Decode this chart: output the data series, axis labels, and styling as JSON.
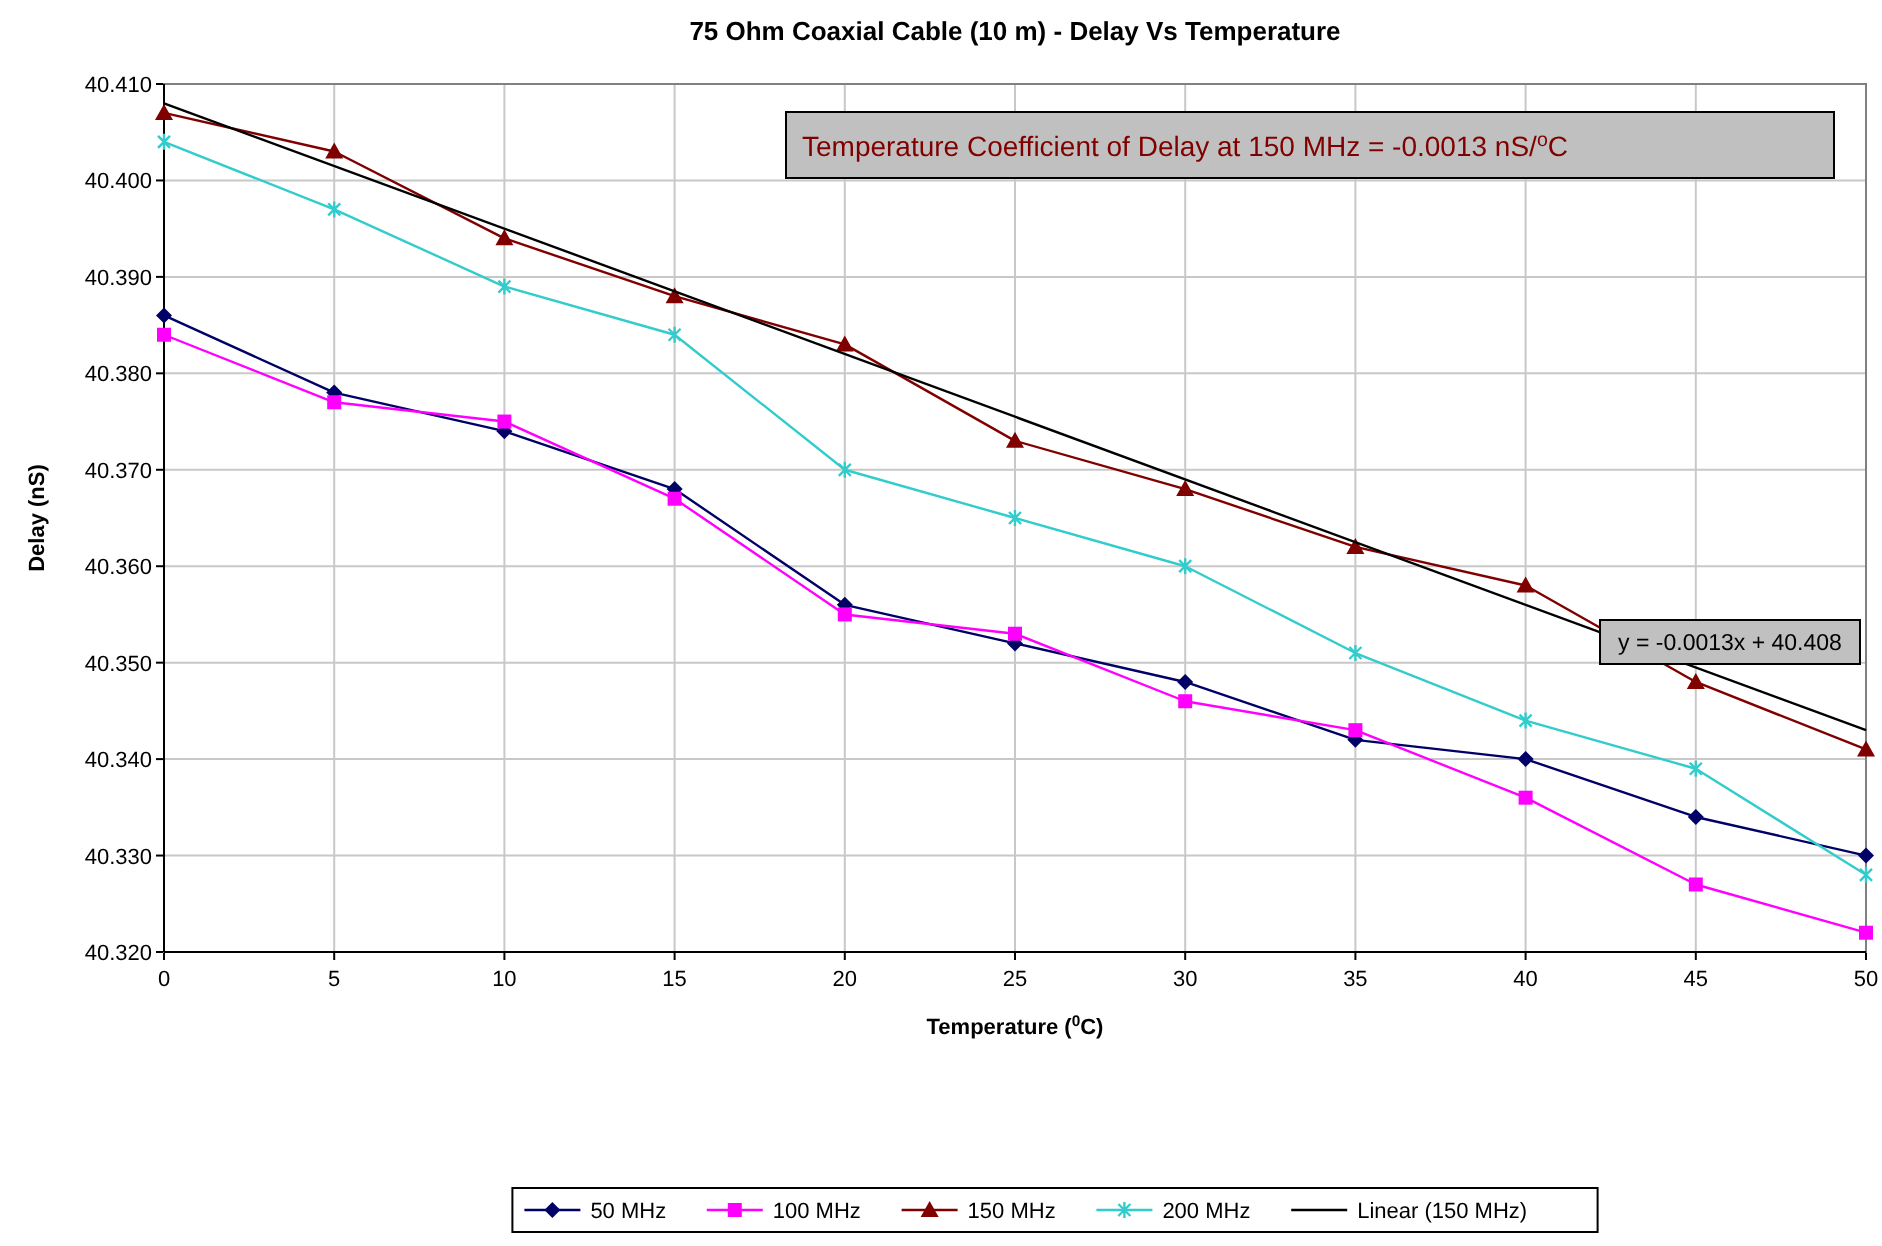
{
  "chart_data": {
    "type": "line",
    "title": "75 Ohm Coaxial Cable (10 m) - Delay Vs Temperature",
    "xlabel": "Temperature ($^{0}$C)",
    "ylabel": "Delay (nS)",
    "x": [
      0,
      5,
      10,
      15,
      20,
      25,
      30,
      35,
      40,
      45,
      50
    ],
    "xlim": [
      0,
      50
    ],
    "xticks": [
      0,
      5,
      10,
      15,
      20,
      25,
      30,
      35,
      40,
      45,
      50
    ],
    "ylim": [
      40.32,
      40.41
    ],
    "yticks": [
      {
        "value": 40.32,
        "label": "40.320"
      },
      {
        "value": 40.33,
        "label": "40.330"
      },
      {
        "value": 40.34,
        "label": "40.340"
      },
      {
        "value": 40.35,
        "label": "40.350"
      },
      {
        "value": 40.36,
        "label": "40.360"
      },
      {
        "value": 40.37,
        "label": "40.370"
      },
      {
        "value": 40.38,
        "label": "40.380"
      },
      {
        "value": 40.39,
        "label": "40.390"
      },
      {
        "value": 40.4,
        "label": "40.400"
      },
      {
        "value": 40.41,
        "label": "40.410"
      }
    ],
    "grid": true,
    "legend": "bottom",
    "series": [
      {
        "name": "50 MHz",
        "color": "#000066",
        "marker": "diamond",
        "values": [
          40.386,
          40.378,
          40.374,
          40.368,
          40.356,
          40.352,
          40.348,
          40.342,
          40.34,
          40.334,
          40.33
        ]
      },
      {
        "name": "100 MHz",
        "color": "#ff00ff",
        "marker": "square",
        "values": [
          40.384,
          40.377,
          40.375,
          40.367,
          40.355,
          40.353,
          40.346,
          40.343,
          40.336,
          40.327,
          40.322
        ]
      },
      {
        "name": "150 MHz",
        "color": "#800000",
        "marker": "triangle",
        "values": [
          40.407,
          40.403,
          40.394,
          40.388,
          40.383,
          40.373,
          40.368,
          40.362,
          40.358,
          40.348,
          40.341
        ]
      },
      {
        "name": "200 MHz",
        "color": "#33cccc",
        "marker": "cross",
        "values": [
          40.404,
          40.397,
          40.389,
          40.384,
          40.37,
          40.365,
          40.36,
          40.351,
          40.344,
          40.339,
          40.328
        ]
      },
      {
        "name": "Linear (150 MHz)",
        "color": "#000000",
        "marker": "none",
        "x": [
          0,
          50
        ],
        "values": [
          40.408,
          40.343
        ]
      }
    ],
    "annotations": [
      "Temperature Coefficient of Delay at 150 MHz  = -0.0013 nS/$^{o}$C",
      "y = -0.0013x + 40.408"
    ]
  }
}
